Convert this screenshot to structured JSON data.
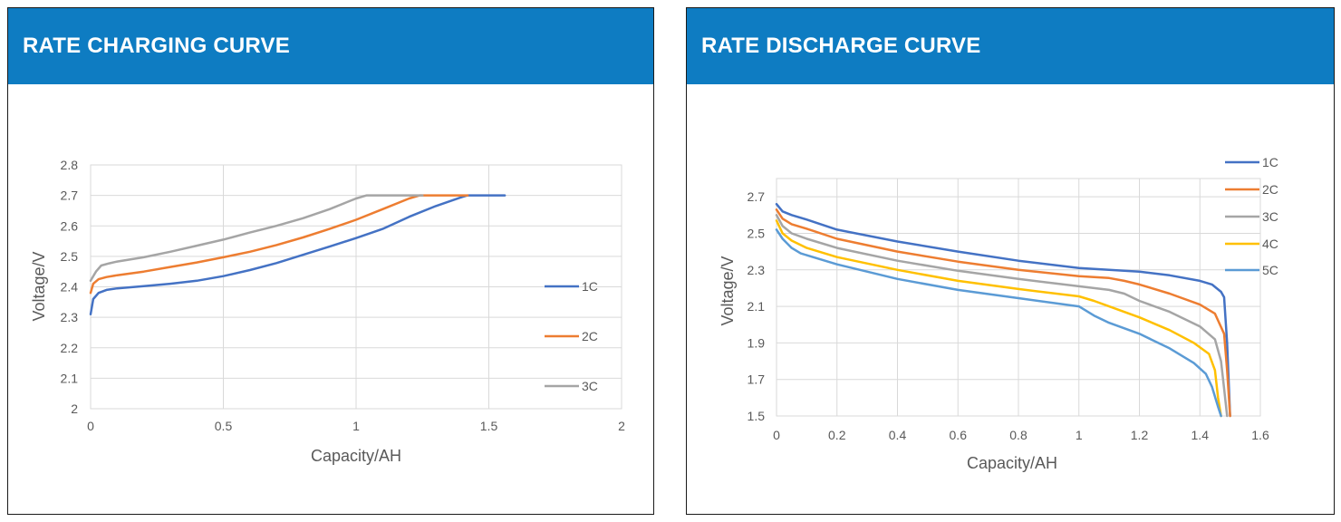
{
  "panels": [
    {
      "title": "RATE CHARGING CURVE"
    },
    {
      "title": "RATE DISCHARGE CURVE"
    }
  ],
  "colors": {
    "header": "#0e7cc2",
    "c1": "#4472c4",
    "c2": "#ed7d31",
    "c3": "#a5a5a5",
    "c4": "#ffc000",
    "c5": "#5b9bd5",
    "grid": "#d9d9d9",
    "axis_text": "#595959"
  },
  "chart_data": [
    {
      "type": "line",
      "title": "",
      "xlabel": "Capacity/AH",
      "ylabel": "Voltage/V",
      "xlim": [
        0,
        2
      ],
      "ylim": [
        2,
        2.8
      ],
      "xticks": [
        0,
        0.5,
        1,
        1.5,
        2
      ],
      "xtick_labels": [
        "0",
        "0.5",
        "1",
        "1.5",
        "2"
      ],
      "yticks": [
        2,
        2.1,
        2.2,
        2.3,
        2.4,
        2.5,
        2.6,
        2.7,
        2.8
      ],
      "ytick_labels": [
        "2",
        "2.1",
        "2.2",
        "2.3",
        "2.4",
        "2.5",
        "2.6",
        "2.7",
        "2.8"
      ],
      "grid": true,
      "legend": "right",
      "series": [
        {
          "name": "1C",
          "color": "#4472c4",
          "points": [
            [
              0,
              2.31
            ],
            [
              0.01,
              2.36
            ],
            [
              0.03,
              2.38
            ],
            [
              0.06,
              2.39
            ],
            [
              0.1,
              2.395
            ],
            [
              0.2,
              2.402
            ],
            [
              0.3,
              2.41
            ],
            [
              0.4,
              2.42
            ],
            [
              0.5,
              2.435
            ],
            [
              0.6,
              2.455
            ],
            [
              0.7,
              2.478
            ],
            [
              0.8,
              2.505
            ],
            [
              0.9,
              2.532
            ],
            [
              1.0,
              2.56
            ],
            [
              1.1,
              2.59
            ],
            [
              1.2,
              2.63
            ],
            [
              1.3,
              2.665
            ],
            [
              1.4,
              2.695
            ],
            [
              1.42,
              2.7
            ],
            [
              1.56,
              2.7
            ]
          ]
        },
        {
          "name": "2C",
          "color": "#ed7d31",
          "points": [
            [
              0,
              2.38
            ],
            [
              0.01,
              2.41
            ],
            [
              0.03,
              2.425
            ],
            [
              0.06,
              2.432
            ],
            [
              0.1,
              2.438
            ],
            [
              0.2,
              2.45
            ],
            [
              0.3,
              2.465
            ],
            [
              0.4,
              2.48
            ],
            [
              0.5,
              2.497
            ],
            [
              0.6,
              2.515
            ],
            [
              0.7,
              2.537
            ],
            [
              0.8,
              2.562
            ],
            [
              0.9,
              2.59
            ],
            [
              1.0,
              2.62
            ],
            [
              1.1,
              2.655
            ],
            [
              1.2,
              2.69
            ],
            [
              1.24,
              2.7
            ],
            [
              1.42,
              2.7
            ]
          ]
        },
        {
          "name": "3C",
          "color": "#a5a5a5",
          "points": [
            [
              0,
              2.42
            ],
            [
              0.02,
              2.45
            ],
            [
              0.04,
              2.47
            ],
            [
              0.07,
              2.477
            ],
            [
              0.1,
              2.483
            ],
            [
              0.2,
              2.497
            ],
            [
              0.3,
              2.515
            ],
            [
              0.4,
              2.535
            ],
            [
              0.5,
              2.555
            ],
            [
              0.6,
              2.578
            ],
            [
              0.7,
              2.6
            ],
            [
              0.8,
              2.625
            ],
            [
              0.9,
              2.655
            ],
            [
              1.0,
              2.69
            ],
            [
              1.04,
              2.7
            ],
            [
              1.25,
              2.7
            ]
          ]
        }
      ]
    },
    {
      "type": "line",
      "title": "",
      "xlabel": "Capacity/AH",
      "ylabel": "Voltage/V",
      "xlim": [
        0,
        1.6
      ],
      "ylim": [
        1.5,
        2.8
      ],
      "xticks": [
        0,
        0.2,
        0.4,
        0.6,
        0.8,
        1,
        1.2,
        1.4,
        1.6
      ],
      "xtick_labels": [
        "0",
        "0.2",
        "0.4",
        "0.6",
        "0.8",
        "1",
        "1.2",
        "1.4",
        "1.6"
      ],
      "yticks": [
        1.5,
        1.7,
        1.9,
        2.1,
        2.3,
        2.5,
        2.7
      ],
      "ytick_labels": [
        "1.5",
        "1.7",
        "1.9",
        "2.1",
        "2.3",
        "2.5",
        "2.7"
      ],
      "grid": true,
      "legend": "top-right",
      "series": [
        {
          "name": "1C",
          "color": "#4472c4",
          "points": [
            [
              0,
              2.66
            ],
            [
              0.02,
              2.62
            ],
            [
              0.05,
              2.6
            ],
            [
              0.1,
              2.575
            ],
            [
              0.2,
              2.52
            ],
            [
              0.4,
              2.455
            ],
            [
              0.6,
              2.4
            ],
            [
              0.8,
              2.35
            ],
            [
              1.0,
              2.31
            ],
            [
              1.1,
              2.3
            ],
            [
              1.2,
              2.29
            ],
            [
              1.3,
              2.27
            ],
            [
              1.4,
              2.24
            ],
            [
              1.44,
              2.22
            ],
            [
              1.47,
              2.18
            ],
            [
              1.48,
              2.15
            ],
            [
              1.49,
              1.9
            ],
            [
              1.5,
              1.5
            ]
          ]
        },
        {
          "name": "2C",
          "color": "#ed7d31",
          "points": [
            [
              0,
              2.63
            ],
            [
              0.02,
              2.58
            ],
            [
              0.05,
              2.55
            ],
            [
              0.1,
              2.525
            ],
            [
              0.2,
              2.47
            ],
            [
              0.4,
              2.4
            ],
            [
              0.6,
              2.345
            ],
            [
              0.8,
              2.3
            ],
            [
              1.0,
              2.265
            ],
            [
              1.1,
              2.255
            ],
            [
              1.15,
              2.24
            ],
            [
              1.2,
              2.22
            ],
            [
              1.3,
              2.17
            ],
            [
              1.4,
              2.11
            ],
            [
              1.45,
              2.06
            ],
            [
              1.48,
              1.95
            ],
            [
              1.49,
              1.75
            ],
            [
              1.5,
              1.5
            ]
          ]
        },
        {
          "name": "3C",
          "color": "#a5a5a5",
          "points": [
            [
              0,
              2.6
            ],
            [
              0.02,
              2.54
            ],
            [
              0.05,
              2.5
            ],
            [
              0.1,
              2.47
            ],
            [
              0.2,
              2.42
            ],
            [
              0.4,
              2.35
            ],
            [
              0.6,
              2.295
            ],
            [
              0.8,
              2.25
            ],
            [
              1.0,
              2.21
            ],
            [
              1.1,
              2.19
            ],
            [
              1.15,
              2.17
            ],
            [
              1.2,
              2.13
            ],
            [
              1.3,
              2.07
            ],
            [
              1.4,
              1.99
            ],
            [
              1.45,
              1.92
            ],
            [
              1.47,
              1.8
            ],
            [
              1.48,
              1.65
            ],
            [
              1.49,
              1.5
            ]
          ]
        },
        {
          "name": "4C",
          "color": "#ffc000",
          "points": [
            [
              0,
              2.57
            ],
            [
              0.02,
              2.5
            ],
            [
              0.05,
              2.46
            ],
            [
              0.1,
              2.42
            ],
            [
              0.2,
              2.37
            ],
            [
              0.4,
              2.3
            ],
            [
              0.6,
              2.24
            ],
            [
              0.8,
              2.195
            ],
            [
              1.0,
              2.155
            ],
            [
              1.05,
              2.13
            ],
            [
              1.1,
              2.1
            ],
            [
              1.2,
              2.04
            ],
            [
              1.3,
              1.97
            ],
            [
              1.38,
              1.9
            ],
            [
              1.43,
              1.84
            ],
            [
              1.45,
              1.75
            ],
            [
              1.46,
              1.6
            ],
            [
              1.47,
              1.5
            ]
          ]
        },
        {
          "name": "5C",
          "color": "#5b9bd5",
          "points": [
            [
              0,
              2.52
            ],
            [
              0.02,
              2.47
            ],
            [
              0.05,
              2.42
            ],
            [
              0.08,
              2.39
            ],
            [
              0.2,
              2.33
            ],
            [
              0.4,
              2.25
            ],
            [
              0.6,
              2.19
            ],
            [
              0.8,
              2.145
            ],
            [
              1.0,
              2.1
            ],
            [
              1.05,
              2.05
            ],
            [
              1.1,
              2.01
            ],
            [
              1.2,
              1.95
            ],
            [
              1.3,
              1.87
            ],
            [
              1.38,
              1.79
            ],
            [
              1.42,
              1.73
            ],
            [
              1.44,
              1.66
            ],
            [
              1.46,
              1.55
            ],
            [
              1.47,
              1.5
            ]
          ]
        }
      ]
    }
  ]
}
